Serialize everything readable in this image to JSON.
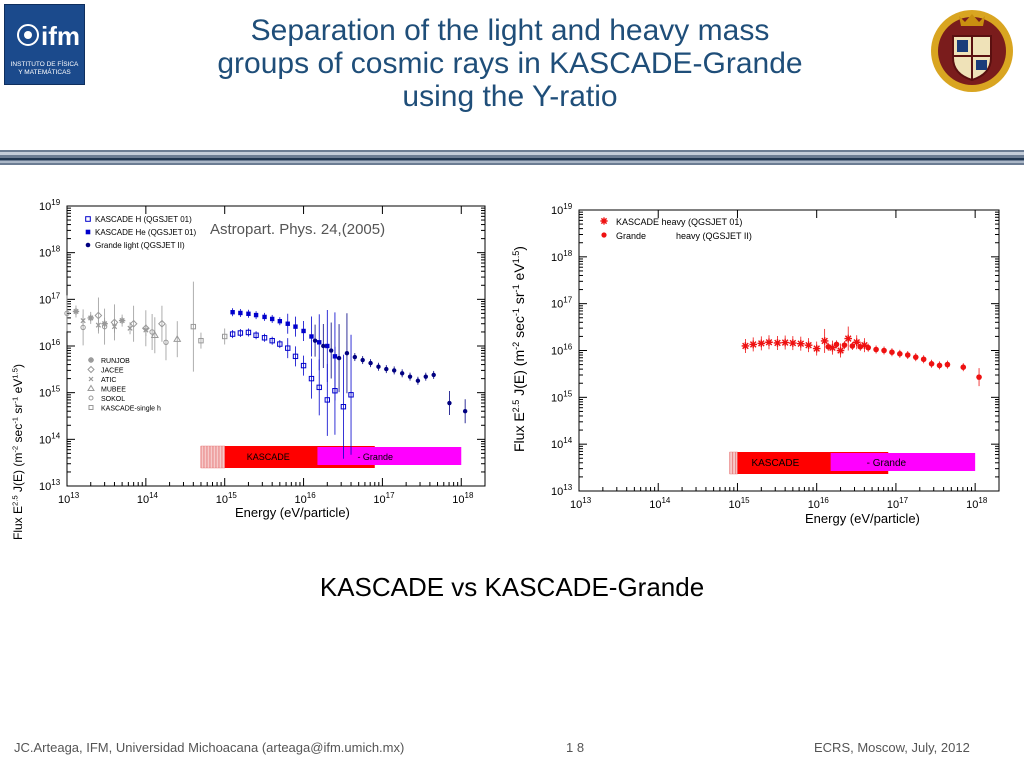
{
  "header": {
    "title_lines": [
      "Separation of the light and heavy mass",
      "groups of cosmic rays in KASCADE-Grande",
      "using the Y-ratio"
    ],
    "left_logo": {
      "name": "ifm",
      "caption_lines": [
        "INSTITUTO DE FÍSICA",
        "Y MATEMÁTICAS"
      ],
      "color": "#1b4a8c"
    },
    "right_logo": {
      "name": "university-seal"
    }
  },
  "slide": {
    "subtitle": "KASCADE vs KASCADE-Grande",
    "citation": "Astropart. Phys. 24,(2005)"
  },
  "footer": {
    "left": "JC.Arteaga, IFM,  Universidad Michoacana  (arteaga@ifm.umich.mx)",
    "page": "1 8",
    "right": "ECRS, Moscow, July, 2012"
  },
  "colors": {
    "title": "#1f4e79",
    "kascade_band": "#ff0000",
    "grande_band": "#ff00ff",
    "light": "#0000cc",
    "heavy": "#ee1111"
  },
  "chart_data": [
    {
      "type": "scatter",
      "xlabel": "Energy     (eV/particle)",
      "ylabel": "Flux E^2.5 J(E) (m^-2 sec^-1 sr^-1 eV^1.5)",
      "xscale": "log",
      "yscale": "log",
      "xlim": [
        10000000000000.0,
        2e+18
      ],
      "ylim": [
        10000000000000.0,
        1e+19
      ],
      "x_ticks": [
        13,
        14,
        15,
        16,
        17,
        18
      ],
      "y_ticks": [
        13,
        14,
        15,
        16,
        17,
        18,
        19
      ],
      "band_labels": {
        "kascade": "KASCADE",
        "grande": "- Grande"
      },
      "bands": {
        "hatched": [
          500000000000000.0,
          1000000000000000.0
        ],
        "kascade": [
          1000000000000000.0,
          8e+16
        ],
        "grande": [
          1.5e+16,
          1e+18
        ]
      },
      "legend_top": {
        "position": "top-left",
        "entries": [
          {
            "label": "KASCADE H   (QGSJET 01)",
            "marker": "open-square",
            "color": "#0000cc"
          },
          {
            "label": "KASCADE He (QGSJET 01)",
            "marker": "filled-square",
            "color": "#0000cc"
          },
          {
            "label": "Grande light (QGSJET II)",
            "marker": "filled-circle",
            "color": "#000080"
          }
        ]
      },
      "legend_bottom": {
        "position": "center-left",
        "entries": [
          {
            "label": "RUNJOB",
            "marker": "star"
          },
          {
            "label": "JACEE",
            "marker": "diamond"
          },
          {
            "label": "ATIC",
            "marker": "cross"
          },
          {
            "label": "MUBEE",
            "marker": "triangle"
          },
          {
            "label": "SOKOL",
            "marker": "circle"
          },
          {
            "label": "KASCADE-single h",
            "marker": "square"
          }
        ]
      },
      "series": [
        {
          "name": "KASCADE H   (QGSJET 01)",
          "marker": "open-square",
          "color": "#0000cc",
          "x": [
            1260000000000000.0,
            1580000000000000.0,
            2000000000000000.0,
            2500000000000000.0,
            3200000000000000.0,
            4000000000000000.0,
            5000000000000000.0,
            6300000000000000.0,
            7900000000000000.0,
            1e+16,
            1.26e+16,
            1.58e+16,
            2e+16,
            2.5e+16,
            3.2e+16,
            4e+16
          ],
          "y": [
            1.8e+16,
            1.9e+16,
            1.95e+16,
            1.7e+16,
            1.5e+16,
            1.3e+16,
            1.1e+16,
            9000000000000000.0,
            6000000000000000.0,
            3800000000000000.0,
            2000000000000000.0,
            1300000000000000.0,
            700000000000000.0,
            1100000000000000.0,
            500000000000000.0,
            900000000000000.0
          ]
        },
        {
          "name": "KASCADE He (QGSJET 01)",
          "marker": "filled-square",
          "color": "#0000cc",
          "x": [
            1260000000000000.0,
            1580000000000000.0,
            2000000000000000.0,
            2500000000000000.0,
            3200000000000000.0,
            4000000000000000.0,
            5000000000000000.0,
            6300000000000000.0,
            7900000000000000.0,
            1e+16,
            1.26e+16,
            1.58e+16,
            2e+16,
            2.5e+16
          ],
          "y": [
            5.3e+16,
            5.1e+16,
            4.9e+16,
            4.6e+16,
            4.2e+16,
            3.8e+16,
            3.4e+16,
            3e+16,
            2.6e+16,
            2.1e+16,
            1.6e+16,
            1.2e+16,
            1e+16,
            6000000000000000.0
          ]
        },
        {
          "name": "Grande light (QGSJET II)",
          "marker": "filled-circle",
          "color": "#000080",
          "x": [
            1.4e+16,
            1.78e+16,
            2.24e+16,
            2.82e+16,
            3.55e+16,
            4.47e+16,
            5.62e+16,
            7.08e+16,
            8.91e+16,
            1.12e+17,
            1.41e+17,
            1.78e+17,
            2.24e+17,
            2.82e+17,
            3.55e+17,
            4.47e+17,
            7.08e+17,
            1.12e+18
          ],
          "y": [
            1.3e+16,
            1e+16,
            8000000000000000.0,
            5500000000000000.0,
            7000000000000000.0,
            5800000000000000.0,
            5000000000000000.0,
            4300000000000000.0,
            3600000000000000.0,
            3200000000000000.0,
            3000000000000000.0,
            2600000000000000.0,
            2200000000000000.0,
            1800000000000000.0,
            2200000000000000.0,
            2400000000000000.0,
            600000000000000.0,
            400000000000000.0
          ]
        },
        {
          "name": "RUNJOB",
          "marker": "star",
          "color": "#999999",
          "x": [
            13000000000000.0,
            20000000000000.0,
            30000000000000.0,
            50000000000000.0
          ],
          "y": [
            5.5e+16,
            4e+16,
            3e+16,
            3.5e+16
          ]
        },
        {
          "name": "JACEE",
          "marker": "diamond",
          "color": "#999999",
          "x": [
            25000000000000.0,
            40000000000000.0,
            70000000000000.0,
            100000000000000.0,
            160000000000000.0
          ],
          "y": [
            4.5e+16,
            3.2e+16,
            3e+16,
            2.4e+16,
            3e+16
          ]
        },
        {
          "name": "ATIC",
          "marker": "cross",
          "color": "#999999",
          "x": [
            16000000000000.0,
            25000000000000.0,
            40000000000000.0,
            63000000000000.0,
            100000000000000.0
          ],
          "y": [
            3.5e+16,
            2.8e+16,
            2.6e+16,
            2.4e+16,
            2.2e+16
          ]
        },
        {
          "name": "MUBEE",
          "marker": "triangle",
          "color": "#999999",
          "x": [
            130000000000000.0,
            250000000000000.0
          ],
          "y": [
            1.7e+16,
            1.4e+16
          ]
        },
        {
          "name": "SOKOL",
          "marker": "circle",
          "color": "#999999",
          "x": [
            10000000000000.0,
            16000000000000.0,
            30000000000000.0,
            120000000000000.0,
            180000000000000.0
          ],
          "y": [
            5e+16,
            2.5e+16,
            2.6e+16,
            2e+16,
            1.2e+16
          ]
        },
        {
          "name": "KASCADE-single h",
          "marker": "square",
          "color": "#999999",
          "x": [
            400000000000000.0,
            500000000000000.0,
            1000000000000000.0
          ],
          "y": [
            2.6e+16,
            1.3e+16,
            1.6e+16
          ]
        }
      ]
    },
    {
      "type": "scatter",
      "xlabel": "Energy     (eV/particle)",
      "ylabel": "Flux E^2.5 J(E) (m^-2 sec^-1 sr^-1 eV^1.5)",
      "xscale": "log",
      "yscale": "log",
      "xlim": [
        10000000000000.0,
        2e+18
      ],
      "ylim": [
        10000000000000.0,
        1e+19
      ],
      "x_ticks": [
        13,
        14,
        15,
        16,
        17,
        18
      ],
      "y_ticks": [
        13,
        14,
        15,
        16,
        17,
        18,
        19
      ],
      "band_labels": {
        "kascade": "KASCADE",
        "grande": "- Grande"
      },
      "bands": {
        "hatched": [
          800000000000000.0,
          1000000000000000.0
        ],
        "kascade": [
          1000000000000000.0,
          8e+16
        ],
        "grande": [
          1.5e+16,
          1e+18
        ]
      },
      "legend_labels": [
        "Grande",
        "heavy (QGSJET II)"
      ],
      "legend": {
        "position": "top-left",
        "entries": [
          {
            "label": "KASCADE heavy (QGSJET 01)",
            "marker": "star",
            "color": "#ee1111"
          }
        ]
      },
      "series": [
        {
          "name": "KASCADE heavy (QGSJET 01)",
          "marker": "star",
          "color": "#ee1111",
          "x": [
            1260000000000000.0,
            1580000000000000.0,
            2000000000000000.0,
            2500000000000000.0,
            3200000000000000.0,
            4000000000000000.0,
            5000000000000000.0,
            6300000000000000.0,
            7900000000000000.0,
            1e+16,
            1.26e+16,
            1.58e+16,
            2e+16,
            2.5e+16,
            3.2e+16,
            4e+16
          ],
          "y": [
            1.25e+16,
            1.35e+16,
            1.42e+16,
            1.5e+16,
            1.45e+16,
            1.48e+16,
            1.44e+16,
            1.4e+16,
            1.3e+16,
            1.1e+16,
            1.6e+16,
            1.15e+16,
            1e+16,
            1.8e+16,
            1.5e+16,
            1.3e+16
          ]
        },
        {
          "name": "Grande heavy (QGSJET II)",
          "marker": "filled-circle",
          "color": "#ee1111",
          "x": [
            1.4e+16,
            1.78e+16,
            2.24e+16,
            2.82e+16,
            3.55e+16,
            4.47e+16,
            5.62e+16,
            7.08e+16,
            8.91e+16,
            1.12e+17,
            1.41e+17,
            1.78e+17,
            2.24e+17,
            2.82e+17,
            3.55e+17,
            4.47e+17,
            7.08e+17,
            1.12e+18
          ],
          "y": [
            1.2e+16,
            1.35e+16,
            1.3e+16,
            1.25e+16,
            1.2e+16,
            1.15e+16,
            1.05e+16,
            1e+16,
            9200000000000000.0,
            8500000000000000.0,
            8000000000000000.0,
            7200000000000000.0,
            6500000000000000.0,
            5200000000000000.0,
            4800000000000000.0,
            5000000000000000.0,
            4400000000000000.0,
            2700000000000000.0
          ]
        }
      ]
    }
  ]
}
